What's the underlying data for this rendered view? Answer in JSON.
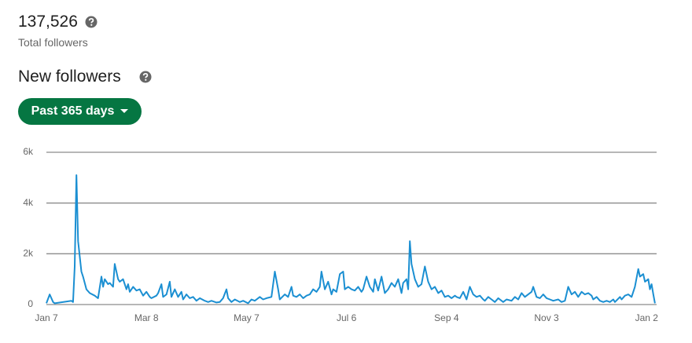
{
  "total_followers": {
    "value": "137,526",
    "label": "Total followers"
  },
  "section_title": "New followers",
  "filter_button": "Past 365 days",
  "chart_data": {
    "type": "line",
    "color": "#1b8fd2",
    "grid": true,
    "x": [
      0,
      2,
      4,
      5,
      15,
      16,
      17,
      18,
      19,
      21,
      22,
      24,
      26,
      29,
      31,
      33,
      34,
      35,
      37,
      38,
      40,
      41,
      43,
      44,
      46,
      48,
      49,
      50,
      52,
      54,
      56,
      58,
      60,
      62,
      63,
      66,
      67,
      69,
      70,
      72,
      74,
      75,
      77,
      79,
      81,
      82,
      84,
      86,
      88,
      90,
      92,
      95,
      97,
      99,
      102,
      104,
      106,
      108,
      109,
      111,
      113,
      116,
      118,
      121,
      123,
      125,
      128,
      130,
      132,
      135,
      137,
      139,
      140,
      143,
      145,
      147,
      148,
      150,
      152,
      154,
      156,
      158,
      160,
      162,
      164,
      165,
      167,
      169,
      171,
      172,
      174,
      176,
      178,
      179,
      181,
      183,
      185,
      187,
      189,
      190,
      192,
      194,
      196,
      197,
      199,
      201,
      203,
      205,
      207,
      209,
      211,
      213,
      214,
      216,
      217,
      218,
      219,
      221,
      223,
      225,
      227,
      229,
      231,
      233,
      235,
      237,
      239,
      241,
      243,
      245,
      246,
      248,
      250,
      252,
      254,
      256,
      258,
      260,
      262,
      263,
      265,
      267,
      269,
      271,
      274,
      276,
      279,
      281,
      283,
      285,
      287,
      289,
      291,
      292,
      294,
      296,
      298,
      300,
      302,
      304,
      307,
      309,
      311,
      313,
      315,
      317,
      319,
      321,
      323,
      325,
      327,
      328,
      330,
      332,
      334,
      336,
      338,
      340,
      341,
      344,
      345,
      347,
      349,
      351,
      353,
      355,
      356,
      358,
      359,
      361,
      362,
      363,
      364,
      365
    ],
    "values": [
      50,
      400,
      100,
      50,
      150,
      100,
      1500,
      5100,
      2500,
      1300,
      1100,
      600,
      450,
      350,
      250,
      1100,
      700,
      1000,
      800,
      850,
      700,
      1600,
      1000,
      900,
      1000,
      600,
      800,
      500,
      700,
      550,
      600,
      350,
      500,
      300,
      250,
      350,
      450,
      800,
      300,
      400,
      900,
      300,
      600,
      300,
      500,
      200,
      400,
      250,
      300,
      150,
      250,
      150,
      100,
      150,
      80,
      100,
      250,
      600,
      250,
      100,
      200,
      100,
      150,
      50,
      200,
      150,
      300,
      200,
      250,
      300,
      1300,
      600,
      200,
      400,
      300,
      700,
      350,
      300,
      400,
      250,
      350,
      400,
      600,
      500,
      700,
      1300,
      600,
      900,
      400,
      600,
      500,
      1200,
      1300,
      600,
      700,
      600,
      550,
      700,
      500,
      600,
      1100,
      700,
      500,
      1000,
      550,
      1100,
      450,
      600,
      850,
      700,
      1000,
      450,
      850,
      1000,
      600,
      2500,
      1600,
      1000,
      700,
      800,
      1500,
      900,
      600,
      700,
      450,
      550,
      300,
      350,
      250,
      350,
      300,
      250,
      500,
      200,
      700,
      400,
      300,
      350,
      200,
      150,
      300,
      200,
      100,
      250,
      100,
      200,
      150,
      300,
      200,
      450,
      300,
      400,
      500,
      700,
      300,
      250,
      400,
      250,
      200,
      150,
      200,
      100,
      150,
      700,
      400,
      500,
      300,
      500,
      400,
      450,
      350,
      200,
      300,
      150,
      100,
      150,
      100,
      200,
      100,
      300,
      200,
      350,
      400,
      300,
      700,
      1400,
      1100,
      1200,
      900,
      1000,
      600,
      800,
      400,
      50
    ],
    "xlim": [
      0,
      366
    ],
    "xticks": [
      {
        "value": 0,
        "label": "Jan 7"
      },
      {
        "value": 60,
        "label": "Mar 8"
      },
      {
        "value": 120,
        "label": "May 7"
      },
      {
        "value": 180,
        "label": "Jul 6"
      },
      {
        "value": 240,
        "label": "Sep 4"
      },
      {
        "value": 300,
        "label": "Nov 3"
      },
      {
        "value": 360,
        "label": "Jan 2"
      }
    ],
    "ylim": [
      0,
      6000
    ],
    "yticks": [
      0,
      {
        "value": 2000,
        "label": "2k"
      },
      {
        "value": 4000,
        "label": "4k"
      },
      {
        "value": 6000,
        "label": "6k"
      }
    ]
  }
}
